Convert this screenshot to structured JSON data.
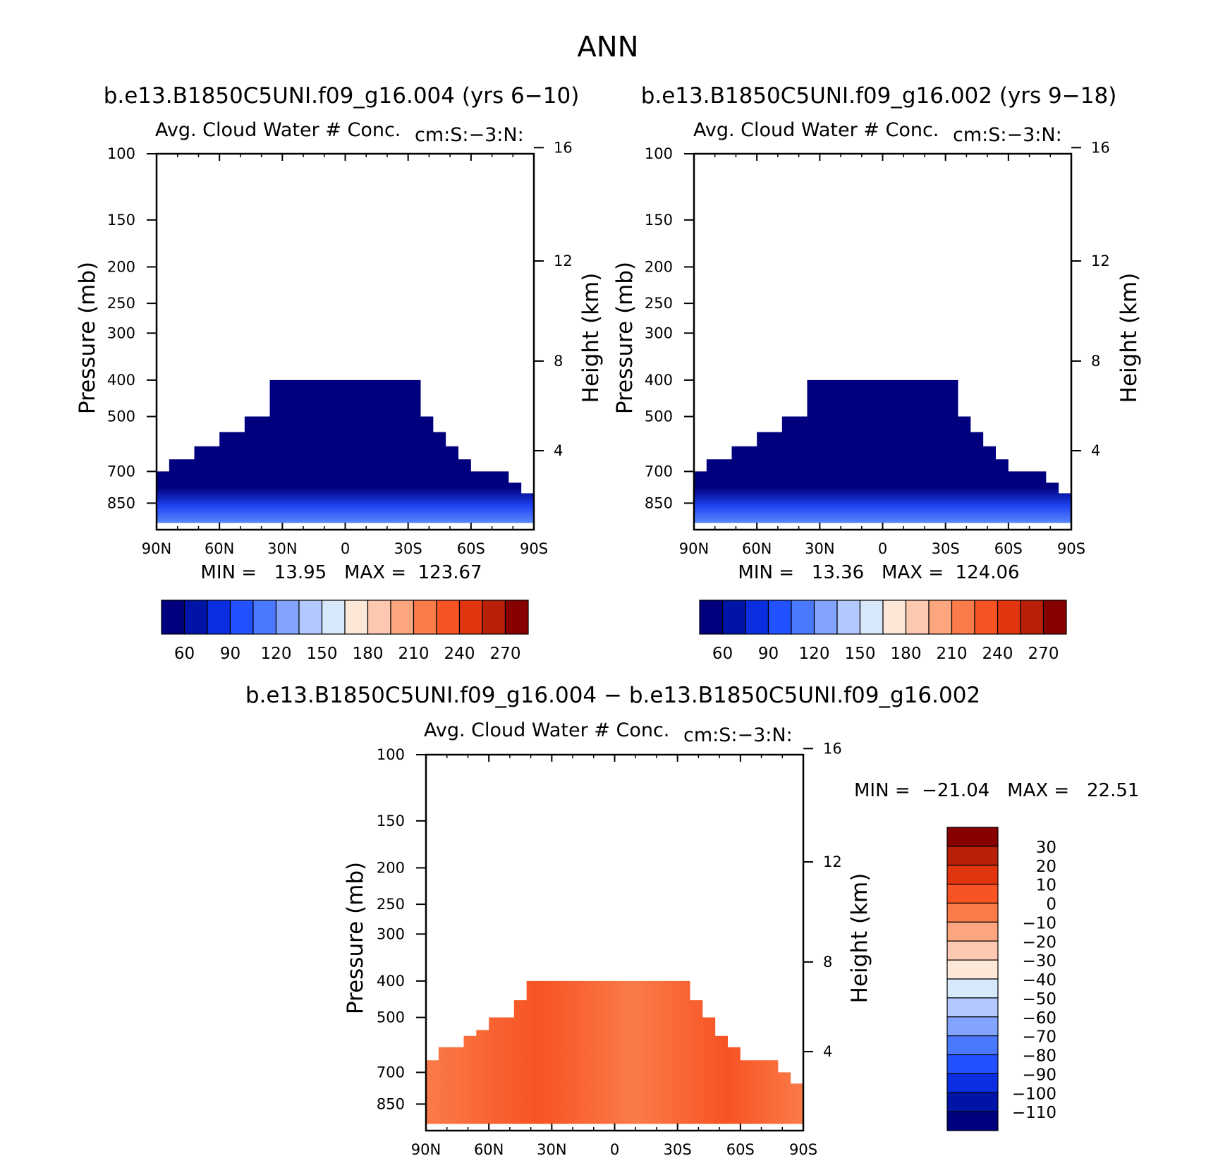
{
  "figure": {
    "title": "ANN",
    "colors": {
      "abs_levels": [
        "#00007f",
        "#0015a8",
        "#0a2ee0",
        "#2251ff",
        "#4a79ff",
        "#82a4ff",
        "#b2c8ff",
        "#d8e8fb",
        "#fde8d8",
        "#fcc8b0",
        "#fba67e",
        "#fb7b4a",
        "#f75323",
        "#e0350e",
        "#b82008",
        "#880000"
      ],
      "diff_levels": [
        "#00007f",
        "#0015a8",
        "#0a2ee0",
        "#2251ff",
        "#4a79ff",
        "#82a4ff",
        "#b2c8ff",
        "#d8e8fb",
        "#fde8d8",
        "#fcc8b0",
        "#fba67e",
        "#fb7b4a",
        "#f75323",
        "#e0350e",
        "#b82008",
        "#880000"
      ]
    }
  },
  "chart_data": [
    {
      "type": "heatmap",
      "id": "panel1",
      "case_title": "b.e13.B1850C5UNI.f09_g16.004 (yrs 6−10)",
      "title": "Avg. Cloud Water # Conc.",
      "units": "cm:S:−3:N:",
      "ylabel": "Pressure (mb)",
      "y2label": "Height (km)",
      "xlim": [
        90,
        -90
      ],
      "ylim": [
        100,
        1000
      ],
      "yscale": "log",
      "x_ticks": [
        "90N",
        "60N",
        "30N",
        "0",
        "30S",
        "60S",
        "90S"
      ],
      "y_ticks": [
        100,
        150,
        200,
        250,
        300,
        400,
        500,
        700,
        850
      ],
      "y2_ticks": [
        16,
        12,
        8,
        4
      ],
      "min_max_text": "MIN =   13.95   MAX =  123.67",
      "min": 13.95,
      "max": 123.67,
      "colorbar_labels": [
        "60",
        "90",
        "120",
        "150",
        "180",
        "210",
        "240",
        "270"
      ],
      "fill_boundary": [
        {
          "lat": 90,
          "p_top": 700
        },
        {
          "lat": 84,
          "p_top": 650
        },
        {
          "lat": 78,
          "p_top": 650
        },
        {
          "lat": 72,
          "p_top": 600
        },
        {
          "lat": 66,
          "p_top": 600
        },
        {
          "lat": 60,
          "p_top": 550
        },
        {
          "lat": 54,
          "p_top": 550
        },
        {
          "lat": 48,
          "p_top": 500
        },
        {
          "lat": 42,
          "p_top": 500
        },
        {
          "lat": 36,
          "p_top": 400
        },
        {
          "lat": -30,
          "p_top": 400
        },
        {
          "lat": -36,
          "p_top": 500
        },
        {
          "lat": -42,
          "p_top": 550
        },
        {
          "lat": -48,
          "p_top": 600
        },
        {
          "lat": -54,
          "p_top": 650
        },
        {
          "lat": -60,
          "p_top": 700
        },
        {
          "lat": -72,
          "p_top": 700
        },
        {
          "lat": -78,
          "p_top": 750
        },
        {
          "lat": -84,
          "p_top": 800
        }
      ]
    },
    {
      "type": "heatmap",
      "id": "panel2",
      "case_title": "b.e13.B1850C5UNI.f09_g16.002 (yrs 9−18)",
      "title": "Avg. Cloud Water # Conc.",
      "units": "cm:S:−3:N:",
      "ylabel": "Pressure (mb)",
      "y2label": "Height (km)",
      "xlim": [
        90,
        -90
      ],
      "ylim": [
        100,
        1000
      ],
      "yscale": "log",
      "x_ticks": [
        "90N",
        "60N",
        "30N",
        "0",
        "30S",
        "60S",
        "90S"
      ],
      "y_ticks": [
        100,
        150,
        200,
        250,
        300,
        400,
        500,
        700,
        850
      ],
      "y2_ticks": [
        16,
        12,
        8,
        4
      ],
      "min_max_text": "MIN =   13.36   MAX =  124.06",
      "min": 13.36,
      "max": 124.06,
      "colorbar_labels": [
        "60",
        "90",
        "120",
        "150",
        "180",
        "210",
        "240",
        "270"
      ],
      "fill_boundary": [
        {
          "lat": 90,
          "p_top": 700
        },
        {
          "lat": 84,
          "p_top": 650
        },
        {
          "lat": 78,
          "p_top": 650
        },
        {
          "lat": 72,
          "p_top": 600
        },
        {
          "lat": 66,
          "p_top": 600
        },
        {
          "lat": 60,
          "p_top": 550
        },
        {
          "lat": 54,
          "p_top": 550
        },
        {
          "lat": 48,
          "p_top": 500
        },
        {
          "lat": 42,
          "p_top": 500
        },
        {
          "lat": 36,
          "p_top": 400
        },
        {
          "lat": -30,
          "p_top": 400
        },
        {
          "lat": -36,
          "p_top": 500
        },
        {
          "lat": -42,
          "p_top": 550
        },
        {
          "lat": -48,
          "p_top": 600
        },
        {
          "lat": -54,
          "p_top": 650
        },
        {
          "lat": -60,
          "p_top": 700
        },
        {
          "lat": -72,
          "p_top": 700
        },
        {
          "lat": -78,
          "p_top": 750
        },
        {
          "lat": -84,
          "p_top": 800
        }
      ]
    },
    {
      "type": "heatmap",
      "id": "panel3",
      "case_title": "b.e13.B1850C5UNI.f09_g16.004 − b.e13.B1850C5UNI.f09_g16.002",
      "title": "Avg. Cloud Water # Conc.",
      "units": "cm:S:−3:N:",
      "ylabel": "Pressure (mb)",
      "y2label": "Height (km)",
      "xlim": [
        90,
        -90
      ],
      "ylim": [
        100,
        1000
      ],
      "yscale": "log",
      "x_ticks": [
        "90N",
        "60N",
        "30N",
        "0",
        "30S",
        "60S",
        "90S"
      ],
      "y_ticks": [
        100,
        150,
        200,
        250,
        300,
        400,
        500,
        700,
        850
      ],
      "y2_ticks": [
        16,
        12,
        8,
        4
      ],
      "min_max_text": "MIN =  −21.04   MAX =   22.51",
      "min": -21.04,
      "max": 22.51,
      "colorbar_labels": [
        "30",
        "20",
        "10",
        "0",
        "−10",
        "−20",
        "−30",
        "−40",
        "−50",
        "−60",
        "−70",
        "−80",
        "−90",
        "−100",
        "−110"
      ],
      "fill_boundary": [
        {
          "lat": 90,
          "p_top": 650
        },
        {
          "lat": 84,
          "p_top": 600
        },
        {
          "lat": 78,
          "p_top": 600
        },
        {
          "lat": 72,
          "p_top": 560
        },
        {
          "lat": 66,
          "p_top": 540
        },
        {
          "lat": 60,
          "p_top": 500
        },
        {
          "lat": 54,
          "p_top": 500
        },
        {
          "lat": 48,
          "p_top": 450
        },
        {
          "lat": 42,
          "p_top": 400
        },
        {
          "lat": 36,
          "p_top": 400
        },
        {
          "lat": -30,
          "p_top": 400
        },
        {
          "lat": -36,
          "p_top": 450
        },
        {
          "lat": -42,
          "p_top": 500
        },
        {
          "lat": -48,
          "p_top": 560
        },
        {
          "lat": -54,
          "p_top": 600
        },
        {
          "lat": -60,
          "p_top": 650
        },
        {
          "lat": -72,
          "p_top": 650
        },
        {
          "lat": -78,
          "p_top": 700
        },
        {
          "lat": -84,
          "p_top": 750
        }
      ]
    }
  ]
}
